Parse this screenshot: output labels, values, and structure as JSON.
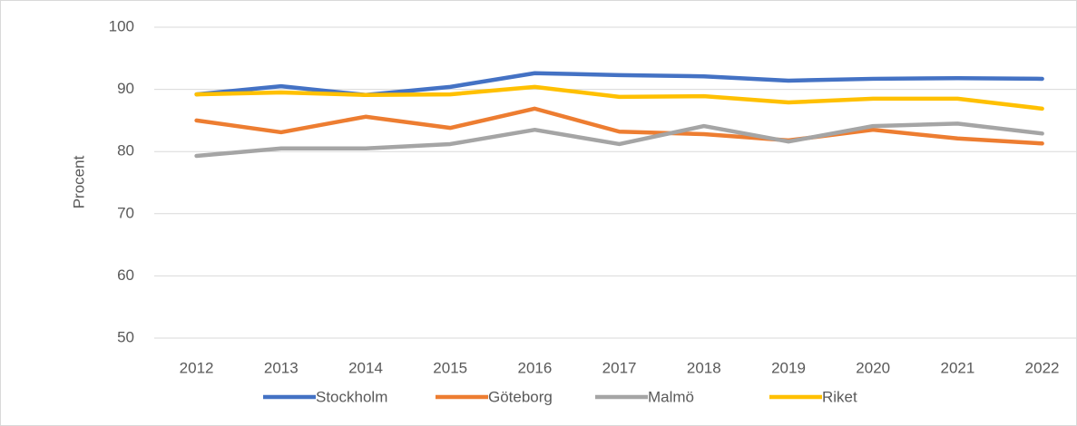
{
  "chart_data": {
    "type": "line",
    "y_label": "Procent",
    "categories": [
      "2012",
      "2013",
      "2014",
      "2015",
      "2016",
      "2017",
      "2018",
      "2019",
      "2020",
      "2021",
      "2022"
    ],
    "series": [
      {
        "name": "Stockholm",
        "color": "#4472c4",
        "values": [
          89.2,
          90.5,
          89.1,
          90.4,
          92.6,
          92.3,
          92.1,
          91.4,
          91.7,
          91.8,
          91.7
        ]
      },
      {
        "name": "Göteborg",
        "color": "#ed7d31",
        "values": [
          85.0,
          83.1,
          85.6,
          83.8,
          86.9,
          83.2,
          82.8,
          81.8,
          83.5,
          82.1,
          81.3
        ]
      },
      {
        "name": "Malmö",
        "color": "#a5a5a5",
        "values": [
          79.3,
          80.5,
          80.5,
          81.2,
          83.5,
          81.2,
          84.1,
          81.6,
          84.1,
          84.5,
          82.9
        ]
      },
      {
        "name": "Riket",
        "color": "#ffc000",
        "values": [
          89.2,
          89.5,
          89.1,
          89.2,
          90.4,
          88.8,
          88.9,
          87.9,
          88.5,
          88.5,
          86.9
        ]
      }
    ],
    "ylim": [
      50,
      100
    ],
    "yticks": [
      50,
      60,
      70,
      80,
      90,
      100
    ],
    "grid": true,
    "legend": "bottom"
  }
}
